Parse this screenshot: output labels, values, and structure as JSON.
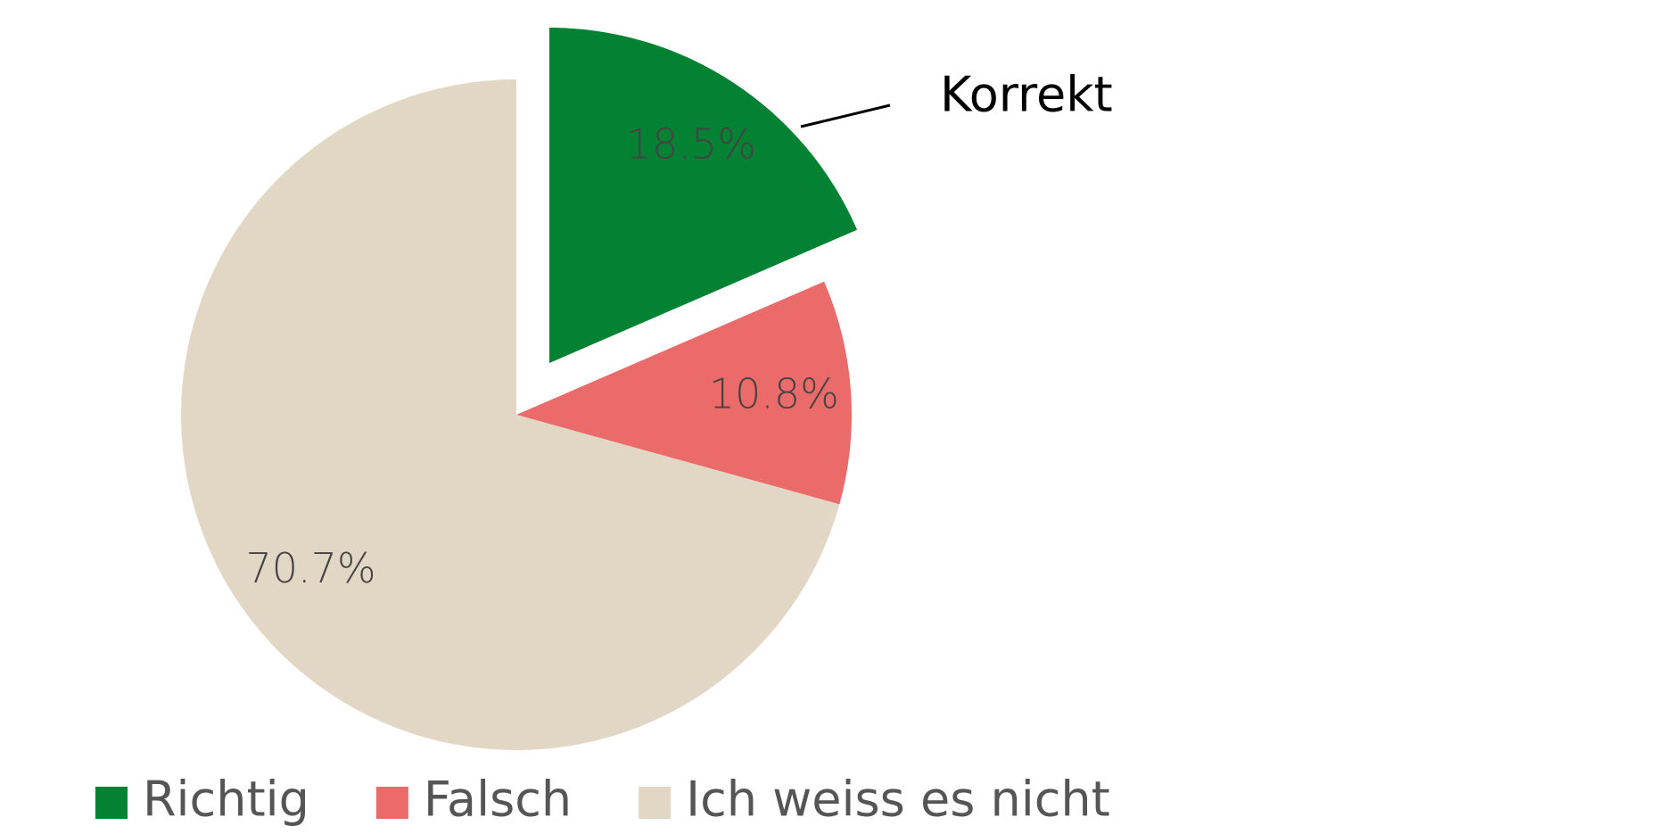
{
  "chart_data": {
    "type": "pie",
    "categories": [
      "Richtig",
      "Falsch",
      "Ich weiss es nicht"
    ],
    "values": [
      18.5,
      10.8,
      70.7
    ],
    "value_labels": [
      "18.5%",
      "10.8%",
      "70.7%"
    ],
    "colors": [
      "#028232",
      "#eb6a6a",
      "#e1d7c4"
    ],
    "annotation": "Korrekt",
    "legend": "bottom"
  }
}
